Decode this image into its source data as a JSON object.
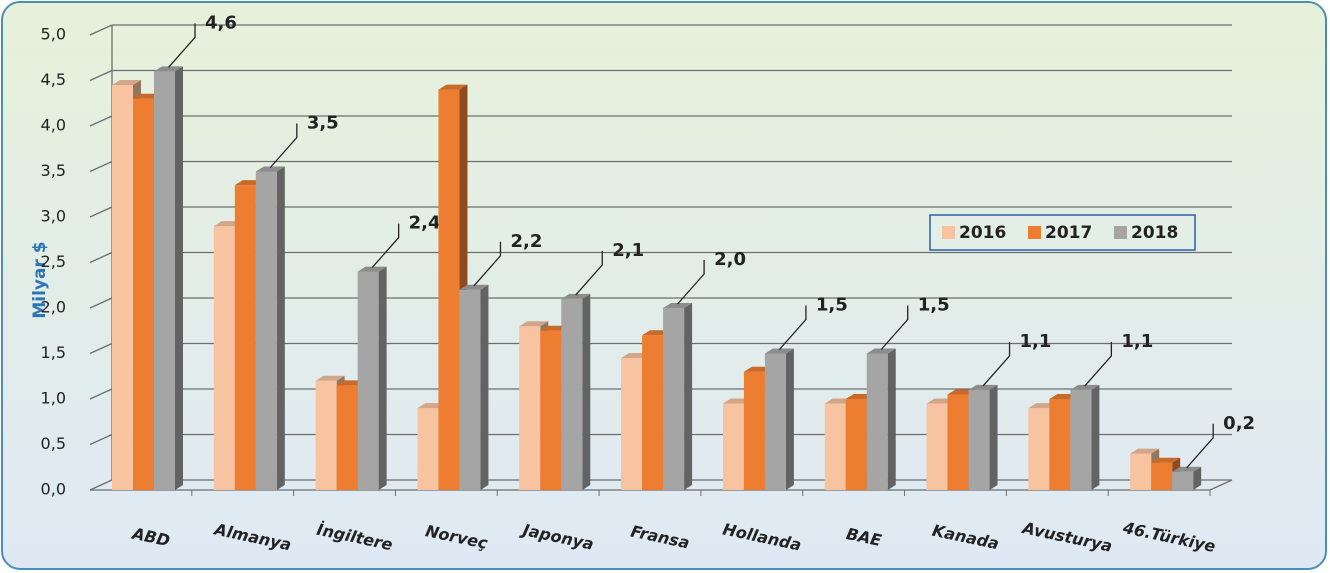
{
  "chart_data": {
    "type": "bar3d",
    "y_label": "Milyar $",
    "categories": [
      "ABD",
      "Almanya",
      "İngiltere",
      "Norveç",
      "Japonya",
      "Fransa",
      "Hollanda",
      "BAE",
      "Kanada",
      "Avusturya",
      "46.Türkiye"
    ],
    "series": [
      {
        "name": "2016",
        "color": "#f7c3a0",
        "values": [
          4.45,
          2.9,
          1.2,
          0.9,
          1.8,
          1.45,
          0.95,
          0.95,
          0.95,
          0.9,
          0.4
        ]
      },
      {
        "name": "2017",
        "color": "#ed7d31",
        "values": [
          4.3,
          3.35,
          1.15,
          4.4,
          1.75,
          1.7,
          1.3,
          1.0,
          1.05,
          1.0,
          0.3
        ]
      },
      {
        "name": "2018",
        "color": "#a5a5a5",
        "values": [
          4.6,
          3.5,
          2.4,
          2.2,
          2.1,
          2.0,
          1.5,
          1.5,
          1.1,
          1.1,
          0.2
        ],
        "value_labels": [
          "4,6",
          "3,5",
          "2,4",
          "2,2",
          "2,1",
          "2,0",
          "1,5",
          "1,5",
          "1,1",
          "1,1",
          "0,2"
        ]
      }
    ],
    "ylim": [
      0,
      5
    ],
    "yticks": [
      {
        "value": 0,
        "label": "0,0"
      },
      {
        "value": 0.5,
        "label": "0,5"
      },
      {
        "value": 1,
        "label": "1,0"
      },
      {
        "value": 1.5,
        "label": "1,5"
      },
      {
        "value": 2,
        "label": "2,0"
      },
      {
        "value": 2.5,
        "label": "2,5"
      },
      {
        "value": 3,
        "label": "3,0"
      },
      {
        "value": 3.5,
        "label": "3,5"
      },
      {
        "value": 4,
        "label": "4,0"
      },
      {
        "value": 4.5,
        "label": "4,5"
      },
      {
        "value": 5,
        "label": "5,0"
      }
    ],
    "grid": true
  }
}
